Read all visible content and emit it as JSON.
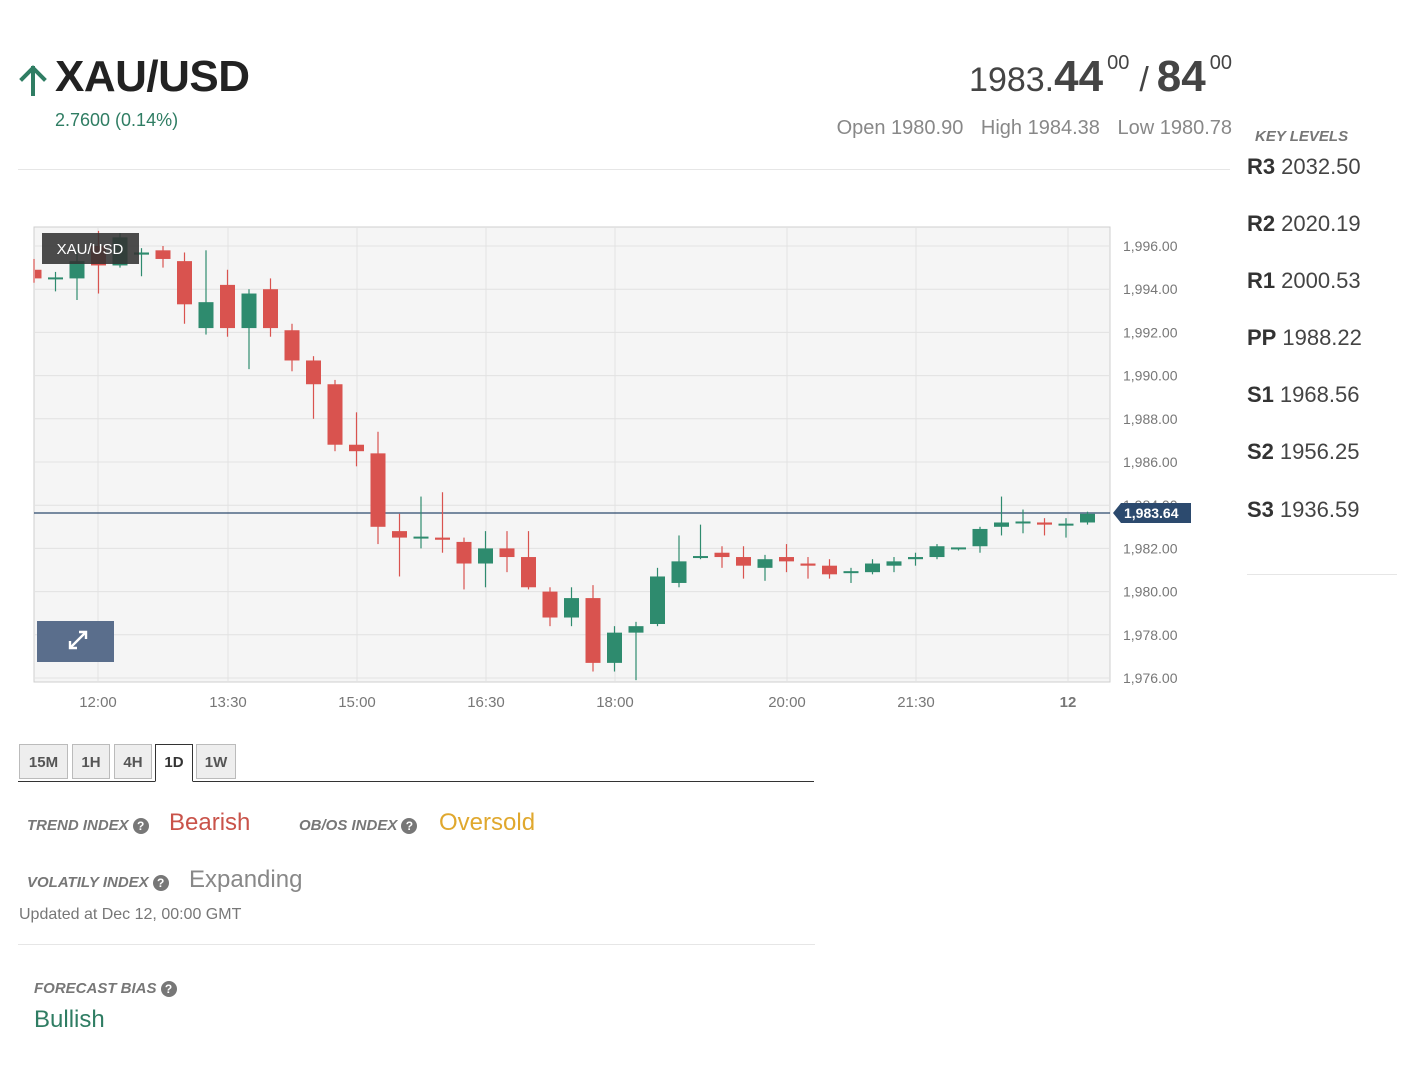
{
  "header": {
    "symbol": "XAU/USD",
    "change": "2.7600 (0.14%)",
    "price": {
      "bid_prefix": "1983.",
      "bid_big": "44",
      "bid_sup": "00",
      "separator": "/",
      "ask_big": "84",
      "ask_sup": "00"
    },
    "open_label": "Open 1980.90",
    "high_label": "High 1984.38",
    "low_label": "Low 1980.78"
  },
  "key_levels": {
    "title": "KEY LEVELS",
    "items": [
      {
        "name": "R3",
        "value": "2032.50"
      },
      {
        "name": "R2",
        "value": "2020.19"
      },
      {
        "name": "R1",
        "value": "2000.53"
      },
      {
        "name": "PP",
        "value": "1988.22"
      },
      {
        "name": "S1",
        "value": "1968.56"
      },
      {
        "name": "S2",
        "value": "1956.25"
      },
      {
        "name": "S3",
        "value": "1936.59"
      }
    ]
  },
  "timeframes": {
    "tabs": [
      "15M",
      "1H",
      "4H",
      "1D",
      "1W"
    ],
    "active": "1D"
  },
  "indices": {
    "trend_label": "TREND INDEX",
    "trend_value": "Bearish",
    "obos_label": "OB/OS INDEX",
    "obos_value": "Oversold",
    "volatility_label": "VOLATILY INDEX",
    "volatility_value": "Expanding",
    "updated": "Updated at Dec 12, 00:00 GMT"
  },
  "forecast": {
    "label": "FORECAST BIAS",
    "value": "Bullish"
  },
  "colors": {
    "up": "#2e8b6e",
    "down": "#d9534f",
    "bearish": "#c9534a",
    "oversold": "#e0a82e",
    "bullish": "#2f7d63",
    "neutral": "#888888",
    "price_line": "#2c4a6e"
  },
  "chart_data": {
    "type": "candlestick",
    "symbol_label": "XAU/USD",
    "x_tick_labels": [
      "12:00",
      "13:30",
      "15:00",
      "16:30",
      "18:00",
      "20:00",
      "21:30",
      "12"
    ],
    "y_tick_labels": [
      "1,996.00",
      "1,994.00",
      "1,992.00",
      "1,990.00",
      "1,988.00",
      "1,986.00",
      "1,984.00",
      "1,982.00",
      "1,980.00",
      "1,978.00",
      "1,976.00"
    ],
    "ylim": [
      1975.8,
      1997.2
    ],
    "current_price": 1983.64,
    "current_price_label": "1,983.64",
    "grid": true,
    "candles": [
      {
        "o": 1994.9,
        "h": 1995.4,
        "l": 1994.3,
        "c": 1994.5
      },
      {
        "o": 1994.5,
        "h": 1994.8,
        "l": 1993.9,
        "c": 1994.5
      },
      {
        "o": 1994.5,
        "h": 1995.9,
        "l": 1993.5,
        "c": 1995.3
      },
      {
        "o": 1996.0,
        "h": 1996.7,
        "l": 1993.8,
        "c": 1995.1
      },
      {
        "o": 1995.1,
        "h": 1996.6,
        "l": 1995.0,
        "c": 1996.4
      },
      {
        "o": 1995.6,
        "h": 1995.9,
        "l": 1994.6,
        "c": 1995.7
      },
      {
        "o": 1995.8,
        "h": 1996.0,
        "l": 1995.0,
        "c": 1995.4
      },
      {
        "o": 1995.3,
        "h": 1995.7,
        "l": 1992.4,
        "c": 1993.3
      },
      {
        "o": 1992.2,
        "h": 1995.8,
        "l": 1991.9,
        "c": 1993.4
      },
      {
        "o": 1994.2,
        "h": 1994.9,
        "l": 1991.8,
        "c": 1992.2
      },
      {
        "o": 1992.2,
        "h": 1994.0,
        "l": 1990.3,
        "c": 1993.8
      },
      {
        "o": 1994.0,
        "h": 1994.5,
        "l": 1991.8,
        "c": 1992.2
      },
      {
        "o": 1992.1,
        "h": 1992.4,
        "l": 1990.2,
        "c": 1990.7
      },
      {
        "o": 1990.7,
        "h": 1990.9,
        "l": 1988.0,
        "c": 1989.6
      },
      {
        "o": 1989.6,
        "h": 1989.8,
        "l": 1986.5,
        "c": 1986.8
      },
      {
        "o": 1986.8,
        "h": 1988.3,
        "l": 1985.8,
        "c": 1986.5
      },
      {
        "o": 1986.4,
        "h": 1987.4,
        "l": 1982.2,
        "c": 1983.0
      },
      {
        "o": 1982.8,
        "h": 1983.6,
        "l": 1980.7,
        "c": 1982.5
      },
      {
        "o": 1982.5,
        "h": 1984.4,
        "l": 1982.0,
        "c": 1982.5
      },
      {
        "o": 1982.5,
        "h": 1984.6,
        "l": 1981.8,
        "c": 1982.4
      },
      {
        "o": 1982.3,
        "h": 1982.5,
        "l": 1980.1,
        "c": 1981.3
      },
      {
        "o": 1981.3,
        "h": 1982.8,
        "l": 1980.2,
        "c": 1982.0
      },
      {
        "o": 1982.0,
        "h": 1982.8,
        "l": 1980.9,
        "c": 1981.6
      },
      {
        "o": 1981.6,
        "h": 1982.8,
        "l": 1980.1,
        "c": 1980.2
      },
      {
        "o": 1980.0,
        "h": 1980.2,
        "l": 1978.4,
        "c": 1978.8
      },
      {
        "o": 1978.8,
        "h": 1980.2,
        "l": 1978.4,
        "c": 1979.7
      },
      {
        "o": 1979.7,
        "h": 1980.3,
        "l": 1976.3,
        "c": 1976.7
      },
      {
        "o": 1976.7,
        "h": 1978.4,
        "l": 1976.3,
        "c": 1978.1
      },
      {
        "o": 1978.1,
        "h": 1978.6,
        "l": 1975.9,
        "c": 1978.4
      },
      {
        "o": 1978.5,
        "h": 1981.1,
        "l": 1978.4,
        "c": 1980.7
      },
      {
        "o": 1980.4,
        "h": 1982.6,
        "l": 1980.2,
        "c": 1981.4
      },
      {
        "o": 1981.6,
        "h": 1983.1,
        "l": 1981.5,
        "c": 1981.6
      },
      {
        "o": 1981.8,
        "h": 1982.1,
        "l": 1981.1,
        "c": 1981.6
      },
      {
        "o": 1981.6,
        "h": 1982.1,
        "l": 1980.6,
        "c": 1981.2
      },
      {
        "o": 1981.1,
        "h": 1981.7,
        "l": 1980.5,
        "c": 1981.5
      },
      {
        "o": 1981.6,
        "h": 1982.2,
        "l": 1980.9,
        "c": 1981.4
      },
      {
        "o": 1981.3,
        "h": 1981.6,
        "l": 1980.6,
        "c": 1981.2
      },
      {
        "o": 1981.2,
        "h": 1981.5,
        "l": 1980.6,
        "c": 1980.8
      },
      {
        "o": 1980.9,
        "h": 1981.1,
        "l": 1980.4,
        "c": 1980.9
      },
      {
        "o": 1980.9,
        "h": 1981.5,
        "l": 1980.8,
        "c": 1981.3
      },
      {
        "o": 1981.2,
        "h": 1981.6,
        "l": 1980.9,
        "c": 1981.4
      },
      {
        "o": 1981.5,
        "h": 1981.8,
        "l": 1981.2,
        "c": 1981.6
      },
      {
        "o": 1981.6,
        "h": 1982.2,
        "l": 1981.5,
        "c": 1982.1
      },
      {
        "o": 1982.0,
        "h": 1982.0,
        "l": 1981.9,
        "c": 1982.0
      },
      {
        "o": 1982.1,
        "h": 1983.0,
        "l": 1981.8,
        "c": 1982.9
      },
      {
        "o": 1983.0,
        "h": 1984.4,
        "l": 1982.6,
        "c": 1983.2
      },
      {
        "o": 1983.2,
        "h": 1983.8,
        "l": 1982.7,
        "c": 1983.2
      },
      {
        "o": 1983.2,
        "h": 1983.4,
        "l": 1982.6,
        "c": 1983.1
      },
      {
        "o": 1983.1,
        "h": 1983.4,
        "l": 1982.5,
        "c": 1983.1
      },
      {
        "o": 1983.2,
        "h": 1983.7,
        "l": 1983.1,
        "c": 1983.6
      }
    ]
  }
}
